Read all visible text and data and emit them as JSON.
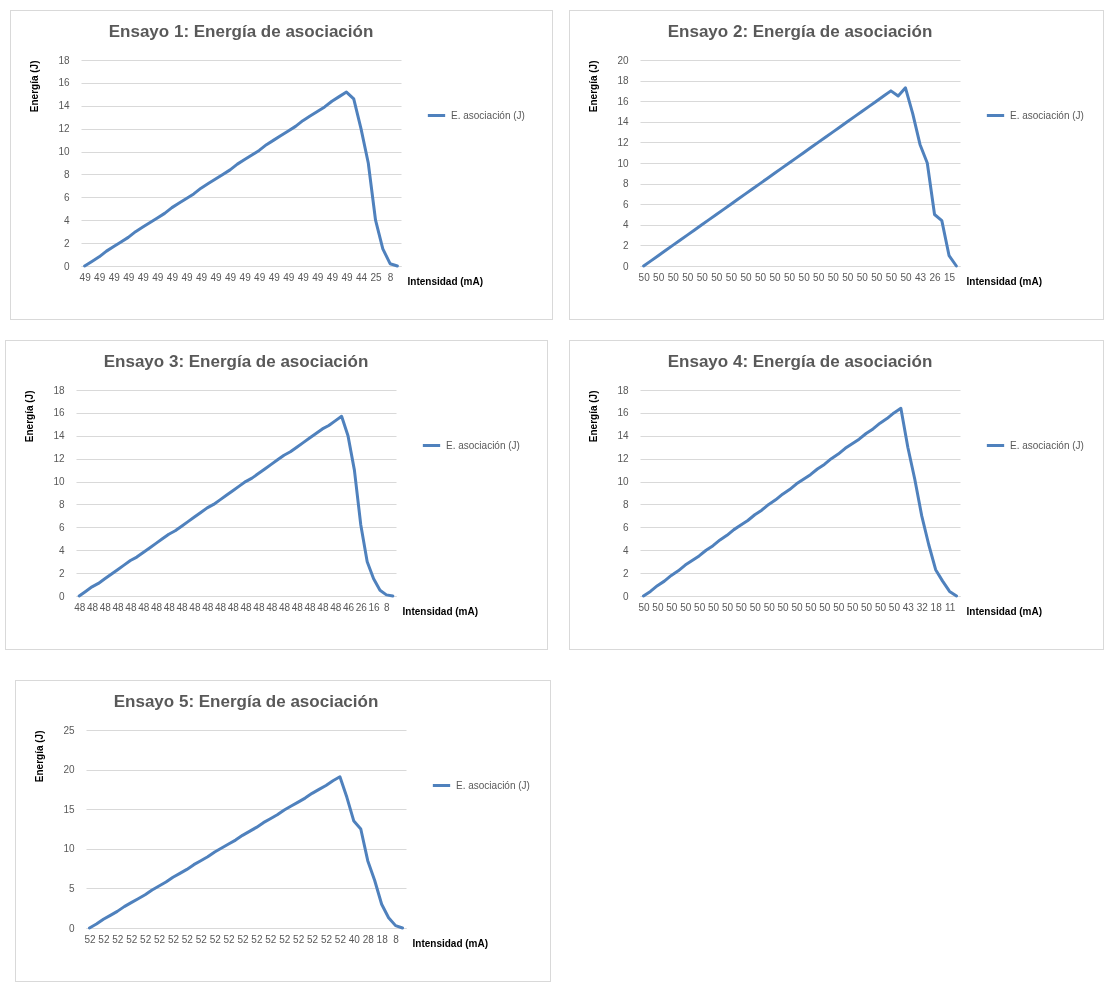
{
  "chart_data": [
    {
      "type": "line",
      "title": "Ensayo 1: Energía de asociación",
      "xlabel": "Intensidad (mA)",
      "ylabel": "Energía (J)",
      "ylim": [
        0,
        18
      ],
      "yticks": [
        0,
        2,
        4,
        6,
        8,
        10,
        12,
        14,
        16,
        18
      ],
      "grid": "y",
      "legend": "right",
      "categories": [
        "49",
        null,
        "49",
        null,
        "49",
        null,
        "49",
        null,
        "49",
        null,
        "49",
        null,
        "49",
        null,
        "49",
        null,
        "49",
        null,
        "49",
        null,
        "49",
        null,
        "49",
        null,
        "49",
        null,
        "49",
        null,
        "49",
        null,
        "49",
        null,
        "49",
        null,
        "49",
        null,
        "49",
        null,
        "44",
        null,
        "25",
        null,
        "8",
        null
      ],
      "series": [
        {
          "name": "E. asociación (J)",
          "color": "#4f81bd",
          "values": [
            0,
            0.4,
            0.8,
            1.3,
            1.7,
            2.1,
            2.5,
            3.0,
            3.4,
            3.8,
            4.2,
            4.6,
            5.1,
            5.5,
            5.9,
            6.3,
            6.8,
            7.2,
            7.6,
            8.0,
            8.4,
            8.9,
            9.3,
            9.7,
            10.1,
            10.6,
            11.0,
            11.4,
            11.8,
            12.2,
            12.7,
            13.1,
            13.5,
            13.9,
            14.4,
            14.8,
            15.2,
            14.6,
            12.0,
            9.0,
            4.0,
            1.5,
            0.2,
            0
          ]
        }
      ]
    },
    {
      "type": "line",
      "title": "Ensayo 2: Energía de asociación",
      "xlabel": "Intensidad (mA)",
      "ylabel": "Energía (J)",
      "ylim": [
        0,
        20
      ],
      "yticks": [
        0,
        2,
        4,
        6,
        8,
        10,
        12,
        14,
        16,
        18,
        20
      ],
      "grid": "y",
      "legend": "right",
      "categories": [
        "50",
        null,
        "50",
        null,
        "50",
        null,
        "50",
        null,
        "50",
        null,
        "50",
        null,
        "50",
        null,
        "50",
        null,
        "50",
        null,
        "50",
        null,
        "50",
        null,
        "50",
        null,
        "50",
        null,
        "50",
        null,
        "50",
        null,
        "50",
        null,
        "50",
        null,
        "50",
        null,
        "50",
        null,
        "43",
        null,
        "26",
        null,
        "15",
        null
      ],
      "series": [
        {
          "name": "E. asociación (J)",
          "color": "#4f81bd",
          "values": [
            0,
            0.5,
            1.0,
            1.5,
            2.0,
            2.5,
            3.0,
            3.5,
            4.0,
            4.5,
            5.0,
            5.5,
            6.0,
            6.5,
            7.0,
            7.5,
            8.0,
            8.5,
            9.0,
            9.5,
            10.0,
            10.5,
            11.0,
            11.5,
            12.0,
            12.5,
            13.0,
            13.5,
            14.0,
            14.5,
            15.0,
            15.5,
            16.0,
            16.5,
            17.0,
            16.5,
            17.3,
            14.8,
            11.8,
            10.0,
            5.0,
            4.4,
            1.0,
            0
          ]
        }
      ]
    },
    {
      "type": "line",
      "title": "Ensayo 3: Energía de asociación",
      "xlabel": "Intensidad (mA)",
      "ylabel": "Energía (J)",
      "ylim": [
        0,
        18
      ],
      "yticks": [
        0,
        2,
        4,
        6,
        8,
        10,
        12,
        14,
        16,
        18
      ],
      "grid": "y",
      "legend": "right",
      "categories": [
        "48",
        null,
        "48",
        null,
        "48",
        null,
        "48",
        null,
        "48",
        null,
        "48",
        null,
        "48",
        null,
        "48",
        null,
        "48",
        null,
        "48",
        null,
        "48",
        null,
        "48",
        null,
        "48",
        null,
        "48",
        null,
        "48",
        null,
        "48",
        null,
        "48",
        null,
        "48",
        null,
        "48",
        null,
        "48",
        null,
        "48",
        null,
        "46",
        null,
        "26",
        null,
        "16",
        null,
        "8",
        null
      ],
      "series": [
        {
          "name": "E. asociación (J)",
          "color": "#4f81bd",
          "values": [
            0,
            0.4,
            0.8,
            1.1,
            1.5,
            1.9,
            2.3,
            2.7,
            3.1,
            3.4,
            3.8,
            4.2,
            4.6,
            5.0,
            5.4,
            5.7,
            6.1,
            6.5,
            6.9,
            7.3,
            7.7,
            8.0,
            8.4,
            8.8,
            9.2,
            9.6,
            10.0,
            10.3,
            10.7,
            11.1,
            11.5,
            11.9,
            12.3,
            12.6,
            13.0,
            13.4,
            13.8,
            14.2,
            14.6,
            14.9,
            15.3,
            15.7,
            14.0,
            11.0,
            6.2,
            3.0,
            1.5,
            0.5,
            0.1,
            0
          ]
        }
      ]
    },
    {
      "type": "line",
      "title": "Ensayo 4: Energía de asociación",
      "xlabel": "Intensidad (mA)",
      "ylabel": "Energía (J)",
      "ylim": [
        0,
        18
      ],
      "yticks": [
        0,
        2,
        4,
        6,
        8,
        10,
        12,
        14,
        16,
        18
      ],
      "grid": "y",
      "legend": "right",
      "categories": [
        "50",
        null,
        "50",
        null,
        "50",
        null,
        "50",
        null,
        "50",
        null,
        "50",
        null,
        "50",
        null,
        "50",
        null,
        "50",
        null,
        "50",
        null,
        "50",
        null,
        "50",
        null,
        "50",
        null,
        "50",
        null,
        "50",
        null,
        "50",
        null,
        "50",
        null,
        "50",
        null,
        "50",
        null,
        "43",
        null,
        "32",
        null,
        "18",
        null,
        "11",
        null
      ],
      "series": [
        {
          "name": "E. asociación (J)",
          "color": "#4f81bd",
          "values": [
            0,
            0.4,
            0.9,
            1.3,
            1.8,
            2.2,
            2.7,
            3.1,
            3.5,
            4.0,
            4.4,
            4.9,
            5.3,
            5.8,
            6.2,
            6.6,
            7.1,
            7.5,
            8.0,
            8.4,
            8.9,
            9.3,
            9.8,
            10.2,
            10.6,
            11.1,
            11.5,
            12.0,
            12.4,
            12.9,
            13.3,
            13.7,
            14.2,
            14.6,
            15.1,
            15.5,
            16.0,
            16.4,
            13.0,
            10.2,
            7.0,
            4.5,
            2.3,
            1.3,
            0.4,
            0
          ]
        }
      ]
    },
    {
      "type": "line",
      "title": "Ensayo 5: Energía de asociación",
      "xlabel": "Intensidad (mA)",
      "ylabel": "Energía (J)",
      "ylim": [
        0,
        25
      ],
      "yticks": [
        0,
        5,
        10,
        15,
        20,
        25
      ],
      "grid": "y",
      "legend": "right",
      "categories": [
        "52",
        null,
        "52",
        null,
        "52",
        null,
        "52",
        null,
        "52",
        null,
        "52",
        null,
        "52",
        null,
        "52",
        null,
        "52",
        null,
        "52",
        null,
        "52",
        null,
        "52",
        null,
        "52",
        null,
        "52",
        null,
        "52",
        null,
        "52",
        null,
        "52",
        null,
        "52",
        null,
        "52",
        null,
        "40",
        null,
        "28",
        null,
        "18",
        null,
        "8",
        null
      ],
      "series": [
        {
          "name": "E. asociación (J)",
          "color": "#4f81bd",
          "values": [
            0,
            0.5,
            1.1,
            1.6,
            2.1,
            2.7,
            3.2,
            3.7,
            4.2,
            4.8,
            5.3,
            5.8,
            6.4,
            6.9,
            7.4,
            8.0,
            8.5,
            9.0,
            9.6,
            10.1,
            10.6,
            11.1,
            11.7,
            12.2,
            12.7,
            13.3,
            13.8,
            14.3,
            14.9,
            15.4,
            15.9,
            16.4,
            17.0,
            17.5,
            18.0,
            18.6,
            19.1,
            16.5,
            13.5,
            12.5,
            8.5,
            6.0,
            3.0,
            1.3,
            0.3,
            0
          ]
        }
      ]
    }
  ]
}
